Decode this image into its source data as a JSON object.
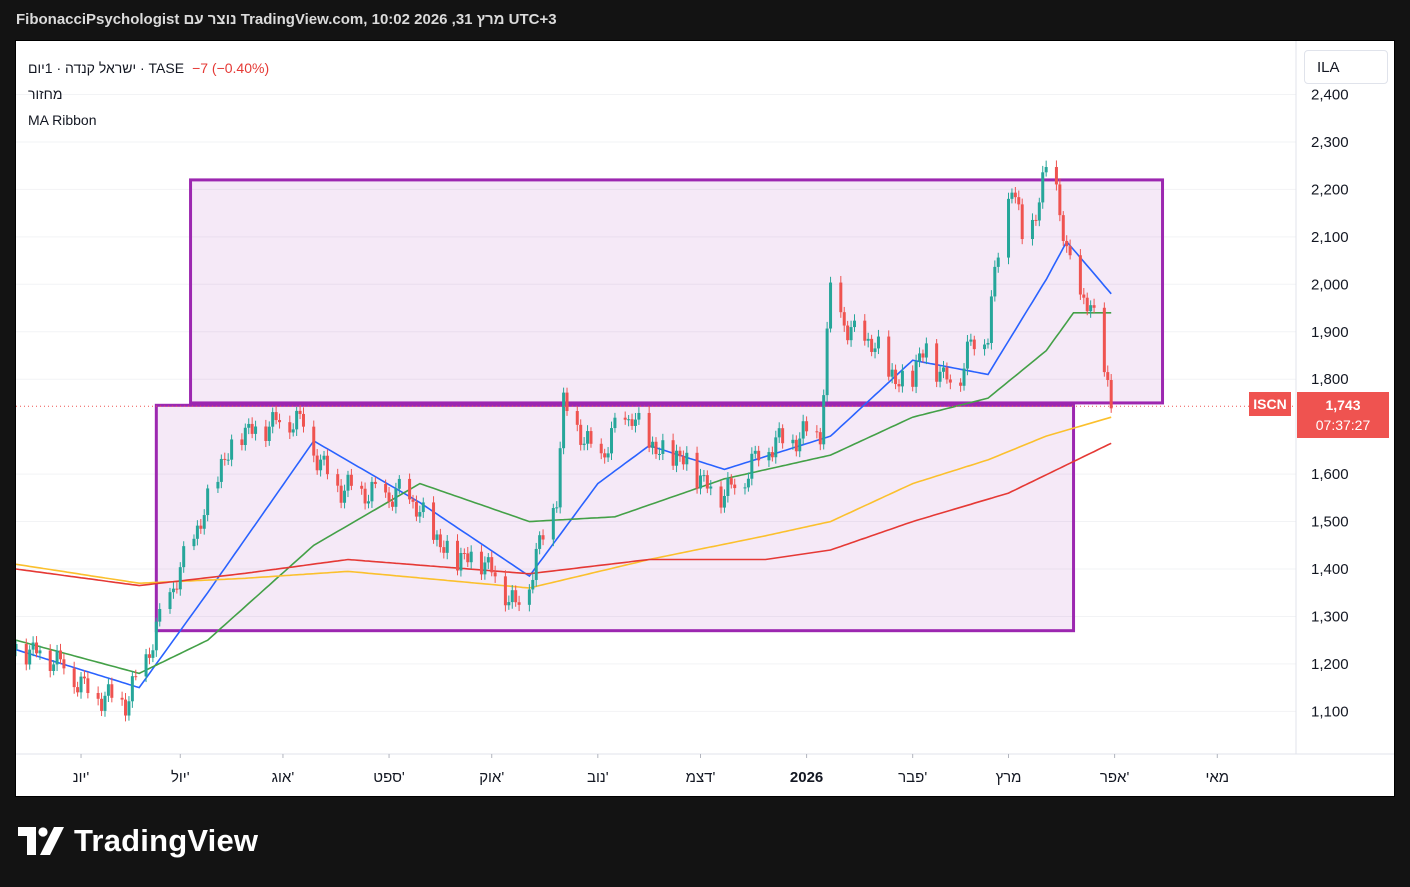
{
  "header": {
    "title": "FibonacciPsychologist נוצר עם TradingView.com, 10:02 2026 ,31 מרץ UTC+3"
  },
  "legend": {
    "symbol_line": "ישראל קנדה · 1יום · TASE",
    "change": "−7 (−0.40%)",
    "indicator_1": "מחזור",
    "indicator_2": "MA Ribbon"
  },
  "currency": "ILA",
  "last_price": {
    "symbol": "ISCN",
    "value": "1,743",
    "countdown": "07:37:27"
  },
  "footer": {
    "logo_text": "TradingView"
  },
  "colors": {
    "up": "#26a69a",
    "down": "#ef5350",
    "ma_fast": "#2962ff",
    "ma_mid": "#43a047",
    "ma_slow": "#fbc02d",
    "ma_long": "#e53935",
    "box": "#9c27b0"
  },
  "chart_data": {
    "type": "candlestick",
    "y_ticks": [
      "2,400",
      "2,300",
      "2,200",
      "2,100",
      "2,000",
      "1,900",
      "1,800",
      "1,600",
      "1,500",
      "1,400",
      "1,300",
      "1,200",
      "1,100"
    ],
    "x_labels": [
      "יונ'",
      "יול'",
      "אוג'",
      "ספט'",
      "אוק'",
      "נוב'",
      "דצמ'",
      "2026",
      "פבר'",
      "מרץ",
      "אפר'",
      "מאי"
    ],
    "last_value": 1743,
    "rectangles": [
      {
        "from": "2025-07-05",
        "to": "2026-04-15",
        "low": 1750,
        "high": 2220
      },
      {
        "from": "2025-06-25",
        "to": "2026-03-20",
        "low": 1270,
        "high": 1745
      }
    ],
    "close_path": [
      [
        "2025-05-15",
        1230
      ],
      [
        "2025-05-22",
        1230
      ],
      [
        "2025-05-29",
        1200
      ],
      [
        "2025-06-04",
        1150
      ],
      [
        "2025-06-10",
        1130
      ],
      [
        "2025-06-16",
        1120
      ],
      [
        "2025-06-20",
        1170
      ],
      [
        "2025-06-24",
        1250
      ],
      [
        "2025-07-01",
        1380
      ],
      [
        "2025-07-08",
        1500
      ],
      [
        "2025-07-14",
        1620
      ],
      [
        "2025-07-20",
        1690
      ],
      [
        "2025-07-26",
        1700
      ],
      [
        "2025-08-01",
        1720
      ],
      [
        "2025-08-07",
        1710
      ],
      [
        "2025-08-12",
        1620
      ],
      [
        "2025-08-18",
        1570
      ],
      [
        "2025-08-25",
        1560
      ],
      [
        "2025-09-01",
        1550
      ],
      [
        "2025-09-05",
        1560
      ],
      [
        "2025-09-10",
        1520
      ],
      [
        "2025-09-15",
        1460
      ],
      [
        "2025-09-20",
        1420
      ],
      [
        "2025-09-27",
        1430
      ],
      [
        "2025-10-03",
        1380
      ],
      [
        "2025-10-08",
        1320
      ],
      [
        "2025-10-12",
        1380
      ],
      [
        "2025-10-16",
        1470
      ],
      [
        "2025-10-20",
        1560
      ],
      [
        "2025-10-22",
        1740
      ],
      [
        "2025-10-26",
        1700
      ],
      [
        "2025-11-01",
        1620
      ],
      [
        "2025-11-06",
        1690
      ],
      [
        "2025-11-11",
        1720
      ],
      [
        "2025-11-16",
        1660
      ],
      [
        "2025-11-21",
        1640
      ],
      [
        "2025-11-27",
        1630
      ],
      [
        "2025-12-02",
        1580
      ],
      [
        "2025-12-08",
        1560
      ],
      [
        "2025-12-14",
        1600
      ],
      [
        "2025-12-20",
        1660
      ],
      [
        "2026-01-01",
        1680
      ],
      [
        "2026-01-05",
        1680
      ],
      [
        "2026-01-08",
        1980
      ],
      [
        "2026-01-13",
        1900
      ],
      [
        "2026-01-18",
        1880
      ],
      [
        "2026-01-22",
        1860
      ],
      [
        "2026-01-27",
        1790
      ],
      [
        "2026-02-01",
        1810
      ],
      [
        "2026-02-05",
        1870
      ],
      [
        "2026-02-10",
        1800
      ],
      [
        "2026-02-14",
        1800
      ],
      [
        "2026-02-18",
        1870
      ],
      [
        "2026-02-23",
        1900
      ],
      [
        "2026-02-27",
        2120
      ],
      [
        "2026-03-02",
        2220
      ],
      [
        "2026-03-06",
        2050
      ],
      [
        "2026-03-08",
        2130
      ],
      [
        "2026-03-12",
        2230
      ],
      [
        "2026-03-15",
        2200
      ],
      [
        "2026-03-18",
        2060
      ],
      [
        "2026-03-21",
        1980
      ],
      [
        "2026-03-25",
        1950
      ],
      [
        "2026-03-28",
        1860
      ],
      [
        "2026-03-31",
        1743
      ]
    ],
    "moving_averages": [
      {
        "name": "",
        "color": "#2962ff",
        "points": [
          [
            "2025-05-15",
            1230
          ],
          [
            "2025-06-20",
            1150
          ],
          [
            "2025-07-10",
            1350
          ],
          [
            "2025-08-10",
            1670
          ],
          [
            "2025-09-10",
            1540
          ],
          [
            "2025-10-12",
            1385
          ],
          [
            "2025-11-01",
            1580
          ],
          [
            "2025-11-16",
            1660
          ],
          [
            "2025-12-08",
            1610
          ],
          [
            "2026-01-08",
            1680
          ],
          [
            "2026-02-01",
            1840
          ],
          [
            "2026-02-23",
            1810
          ],
          [
            "2026-03-12",
            2010
          ],
          [
            "2026-03-18",
            2090
          ],
          [
            "2026-03-31",
            1980
          ]
        ]
      },
      {
        "name": "",
        "color": "#43a047",
        "points": [
          [
            "2025-05-15",
            1250
          ],
          [
            "2025-06-20",
            1180
          ],
          [
            "2025-07-10",
            1250
          ],
          [
            "2025-08-10",
            1450
          ],
          [
            "2025-09-10",
            1580
          ],
          [
            "2025-10-12",
            1500
          ],
          [
            "2025-11-06",
            1510
          ],
          [
            "2025-12-08",
            1590
          ],
          [
            "2026-01-08",
            1640
          ],
          [
            "2026-02-01",
            1720
          ],
          [
            "2026-02-23",
            1760
          ],
          [
            "2026-03-12",
            1860
          ],
          [
            "2026-03-20",
            1940
          ],
          [
            "2026-03-31",
            1940
          ]
        ]
      },
      {
        "name": "",
        "color": "#fbc02d",
        "points": [
          [
            "2025-05-15",
            1410
          ],
          [
            "2025-06-20",
            1370
          ],
          [
            "2025-07-20",
            1380
          ],
          [
            "2025-08-20",
            1395
          ],
          [
            "2025-10-12",
            1360
          ],
          [
            "2025-11-16",
            1420
          ],
          [
            "2025-12-20",
            1470
          ],
          [
            "2026-01-08",
            1500
          ],
          [
            "2026-02-01",
            1580
          ],
          [
            "2026-02-23",
            1630
          ],
          [
            "2026-03-12",
            1680
          ],
          [
            "2026-03-31",
            1720
          ]
        ]
      },
      {
        "name": "",
        "color": "#e53935",
        "points": [
          [
            "2025-05-15",
            1400
          ],
          [
            "2025-06-20",
            1365
          ],
          [
            "2025-07-20",
            1390
          ],
          [
            "2025-08-20",
            1420
          ],
          [
            "2025-10-12",
            1390
          ],
          [
            "2025-11-16",
            1420
          ],
          [
            "2025-12-20",
            1420
          ],
          [
            "2026-01-08",
            1440
          ],
          [
            "2026-02-01",
            1500
          ],
          [
            "2026-03-01",
            1560
          ],
          [
            "2026-03-31",
            1665
          ]
        ]
      }
    ]
  }
}
